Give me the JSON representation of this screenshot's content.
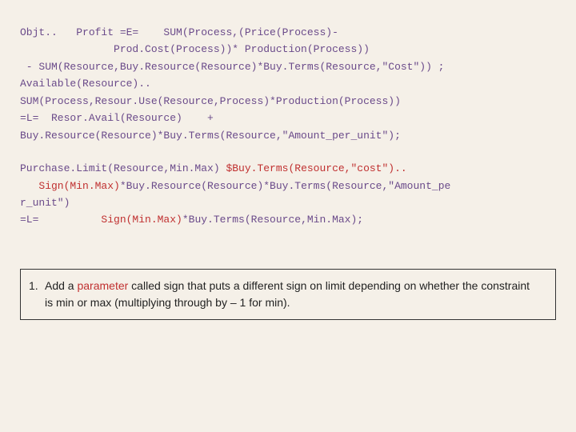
{
  "code1": {
    "l1": "Objt..   Profit =E=    SUM(Process,(Price(Process)-",
    "l2": "               Prod.Cost(Process))* Production(Process))",
    "l3": " - SUM(Resource,Buy.Resource(Resource)*Buy.Terms(Resource,\"Cost\")) ;",
    "l4": "Available(Resource)..",
    "l5": "SUM(Process,Resour.Use(Resource,Process)*Production(Process))",
    "l6": "=L=  Resor.Avail(Resource)    +",
    "l7": "Buy.Resource(Resource)*Buy.Terms(Resource,\"Amount_per_unit\");"
  },
  "code2": {
    "l1a": "Purchase.Limit(Resource,Min.Max) ",
    "l1b": "$Buy.Terms(Resource,\"cost\")..",
    "l2a": "   ",
    "l2b": "Sign(Min.Max)",
    "l2c": "*Buy.Resource(Resource)*Buy.Terms(Resource,\"Amount_pe",
    "l3": "r_unit\")",
    "l4a": "=L=          ",
    "l4b": "Sign(Min.Max)",
    "l4c": "*Buy.Terms(Resource,Min.Max);"
  },
  "instruction": {
    "num": "1.",
    "pre": "Add a ",
    "param": "parameter",
    "post": " called sign that puts a different sign on limit depending on whether the constraint is min or max (multiplying through by – 1 for min)."
  }
}
